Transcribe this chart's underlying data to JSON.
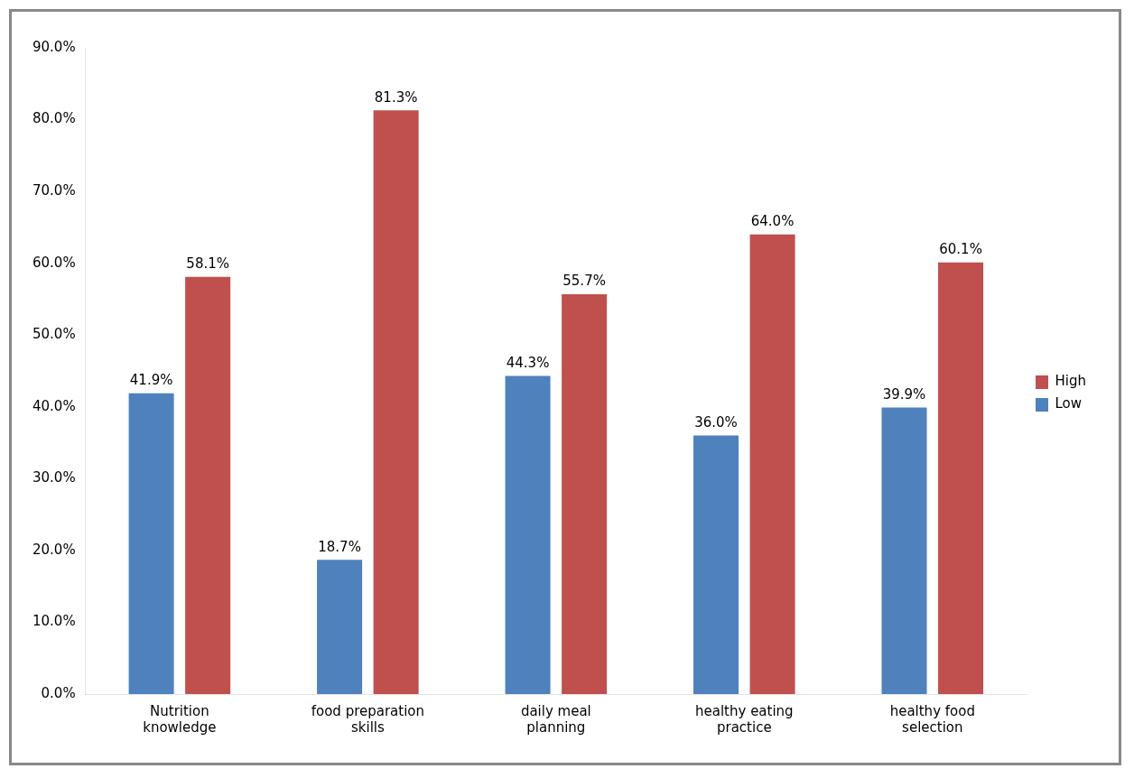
{
  "chart_data": {
    "type": "bar",
    "categories": [
      "Nutrition knowledge",
      "food preparation skills",
      "daily meal planning",
      "healthy eating practice",
      "healthy food selection"
    ],
    "series": [
      {
        "name": "Low",
        "color": "#4f81bd",
        "values": [
          41.9,
          18.7,
          44.3,
          36.0,
          39.9
        ],
        "value_labels": [
          "41.9%",
          "18.7%",
          "44.3%",
          "36.0%",
          "39.9%"
        ]
      },
      {
        "name": "High",
        "color": "#c0504d",
        "values": [
          58.1,
          81.3,
          55.7,
          64.0,
          60.1
        ],
        "value_labels": [
          "58.1%",
          "81.3%",
          "55.7%",
          "64.0%",
          "60.1%"
        ]
      }
    ],
    "ylim": [
      0,
      90
    ],
    "yticks": [
      {
        "value": 0,
        "label": "0.0%"
      },
      {
        "value": 10,
        "label": "10.0%"
      },
      {
        "value": 20,
        "label": "20.0%"
      },
      {
        "value": 30,
        "label": "30.0%"
      },
      {
        "value": 40,
        "label": "40.0%"
      },
      {
        "value": 50,
        "label": "50.0%"
      },
      {
        "value": 60,
        "label": "60.0%"
      },
      {
        "value": 70,
        "label": "70.0%"
      },
      {
        "value": 80,
        "label": "80.0%"
      },
      {
        "value": 90,
        "label": "90.0%"
      }
    ],
    "grid": false,
    "legend": "right"
  }
}
